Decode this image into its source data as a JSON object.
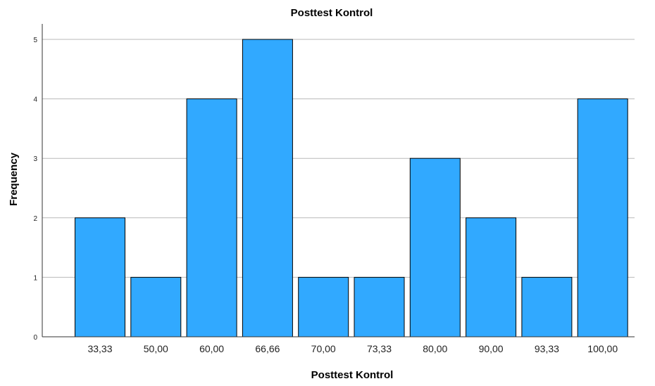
{
  "chart_data": {
    "type": "bar",
    "title": "Posttest Kontrol",
    "xlabel": "Posttest Kontrol",
    "ylabel": "Frequency",
    "categories": [
      "33,33",
      "50,00",
      "60,00",
      "66,66",
      "70,00",
      "73,33",
      "80,00",
      "90,00",
      "93,33",
      "100,00"
    ],
    "values": [
      2,
      1,
      4,
      5,
      1,
      1,
      3,
      2,
      1,
      4
    ],
    "yticks": [
      "0",
      "1",
      "2",
      "3",
      "4",
      "5"
    ],
    "ylim": [
      0,
      5
    ],
    "grid": true,
    "colors": {
      "bar": "#31a9ff",
      "bar_stroke": "#000000",
      "grid": "#b9b9b9"
    }
  }
}
